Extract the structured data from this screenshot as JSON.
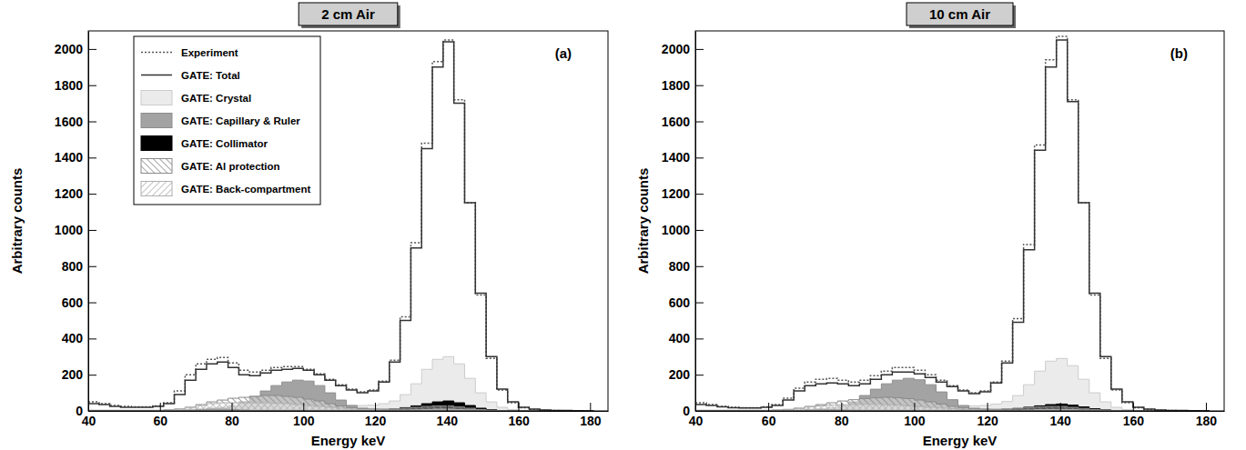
{
  "chart_data": [
    {
      "type": "histogram",
      "title": "2 cm Air",
      "x_label": "Energy keV",
      "y_label": "Arbitrary counts",
      "annotation": "(a)",
      "xlim": [
        40,
        185
      ],
      "ylim": [
        0,
        2100
      ],
      "xticks": [
        40,
        60,
        80,
        100,
        120,
        140,
        160,
        180
      ],
      "yticks": [
        0,
        200,
        400,
        600,
        800,
        1000,
        1200,
        1400,
        1600,
        1800,
        2000
      ],
      "legend": "top-left",
      "bins": [
        40,
        43,
        46,
        49,
        52,
        55,
        58,
        61,
        64,
        67,
        70,
        73,
        76,
        79,
        82,
        85,
        88,
        91,
        94,
        97,
        100,
        103,
        106,
        109,
        112,
        115,
        118,
        121,
        124,
        127,
        130,
        133,
        136,
        139,
        142,
        145,
        148,
        151,
        154,
        157,
        160,
        163,
        166,
        169,
        172,
        175,
        178,
        181
      ],
      "series": [
        {
          "name": "Experiment",
          "type": "step",
          "color": "#555555",
          "line_style": "dotted",
          "values": [
            50,
            40,
            30,
            25,
            22,
            22,
            28,
            45,
            110,
            200,
            260,
            285,
            295,
            265,
            225,
            215,
            225,
            240,
            245,
            245,
            230,
            205,
            175,
            145,
            120,
            105,
            115,
            165,
            280,
            520,
            930,
            1480,
            1930,
            2050,
            1720,
            1150,
            640,
            290,
            115,
            45,
            18,
            8,
            4,
            2,
            1,
            0,
            0
          ]
        },
        {
          "name": "GATE: Total",
          "type": "step",
          "color": "#333333",
          "line_style": "solid",
          "values": [
            40,
            35,
            25,
            20,
            20,
            20,
            25,
            40,
            90,
            170,
            230,
            260,
            270,
            240,
            200,
            195,
            210,
            225,
            230,
            235,
            225,
            200,
            170,
            140,
            115,
            100,
            110,
            160,
            270,
            500,
            900,
            1450,
            1900,
            2040,
            1700,
            1150,
            650,
            300,
            120,
            50,
            20,
            10,
            5,
            3,
            2,
            1,
            0
          ]
        },
        {
          "name": "GATE: Crystal",
          "type": "area",
          "color": "#ebebeb",
          "line_style": "solid",
          "values": [
            5,
            5,
            5,
            5,
            5,
            5,
            5,
            8,
            10,
            12,
            15,
            18,
            20,
            22,
            25,
            28,
            30,
            35,
            38,
            40,
            40,
            38,
            35,
            32,
            30,
            30,
            32,
            40,
            55,
            90,
            150,
            230,
            285,
            300,
            260,
            180,
            100,
            50,
            20,
            8,
            3,
            1,
            0,
            0,
            0,
            0,
            0
          ]
        },
        {
          "name": "GATE: Capillary & Ruler",
          "type": "area",
          "color": "#a3a3a3",
          "line_style": "solid",
          "values": [
            0,
            0,
            0,
            0,
            0,
            0,
            0,
            0,
            2,
            5,
            10,
            15,
            20,
            30,
            50,
            80,
            110,
            140,
            160,
            170,
            165,
            140,
            100,
            60,
            30,
            15,
            10,
            8,
            10,
            15,
            20,
            25,
            30,
            30,
            25,
            18,
            10,
            5,
            2,
            1,
            0,
            0,
            0,
            0,
            0,
            0,
            0
          ]
        },
        {
          "name": "GATE: Collimator",
          "type": "area",
          "color": "#000000",
          "line_style": "solid",
          "values": [
            0,
            0,
            0,
            0,
            0,
            0,
            0,
            0,
            2,
            5,
            8,
            10,
            10,
            8,
            5,
            3,
            3,
            3,
            3,
            3,
            3,
            3,
            3,
            3,
            3,
            3,
            3,
            5,
            10,
            18,
            28,
            40,
            50,
            55,
            45,
            30,
            15,
            6,
            2,
            1,
            0,
            0,
            0,
            0,
            0,
            0,
            0
          ]
        },
        {
          "name": "GATE: Al protection",
          "type": "area",
          "color": "#8a8a8a",
          "line_style": "hatched",
          "values": [
            0,
            0,
            0,
            0,
            0,
            0,
            2,
            5,
            10,
            20,
            35,
            50,
            60,
            70,
            75,
            80,
            85,
            85,
            80,
            75,
            65,
            55,
            40,
            28,
            18,
            12,
            10,
            10,
            12,
            15,
            20,
            25,
            28,
            28,
            22,
            15,
            8,
            4,
            2,
            0,
            0,
            0,
            0,
            0,
            0,
            0,
            0
          ]
        },
        {
          "name": "GATE: Back-compartment",
          "type": "area",
          "color": "#b0b0b0",
          "line_style": "hatched",
          "values": [
            0,
            0,
            0,
            0,
            0,
            0,
            2,
            5,
            10,
            20,
            30,
            40,
            45,
            45,
            45,
            45,
            45,
            42,
            40,
            35,
            30,
            25,
            20,
            15,
            10,
            8,
            6,
            5,
            5,
            5,
            6,
            8,
            10,
            10,
            8,
            6,
            4,
            2,
            1,
            0,
            0,
            0,
            0,
            0,
            0,
            0,
            0
          ]
        }
      ]
    },
    {
      "type": "histogram",
      "title": "10 cm Air",
      "x_label": "Energy keV",
      "y_label": "Arbitrary counts",
      "annotation": "(b)",
      "xlim": [
        40,
        185
      ],
      "ylim": [
        0,
        2100
      ],
      "xticks": [
        40,
        60,
        80,
        100,
        120,
        140,
        160,
        180
      ],
      "yticks": [
        0,
        200,
        400,
        600,
        800,
        1000,
        1200,
        1400,
        1600,
        1800,
        2000
      ],
      "bins": [
        40,
        43,
        46,
        49,
        52,
        55,
        58,
        61,
        64,
        67,
        70,
        73,
        76,
        79,
        82,
        85,
        88,
        91,
        94,
        97,
        100,
        103,
        106,
        109,
        112,
        115,
        118,
        121,
        124,
        127,
        130,
        133,
        136,
        139,
        142,
        145,
        148,
        151,
        154,
        157,
        160,
        163,
        166,
        169,
        172,
        175,
        178,
        181
      ],
      "series": [
        {
          "type": "step",
          "color": "#555555",
          "line_style": "dotted",
          "values": [
            45,
            35,
            25,
            20,
            18,
            18,
            22,
            35,
            70,
            125,
            160,
            175,
            180,
            170,
            160,
            170,
            195,
            220,
            240,
            240,
            225,
            200,
            170,
            140,
            115,
            100,
            110,
            160,
            275,
            510,
            920,
            1470,
            1940,
            2070,
            1720,
            1150,
            640,
            290,
            115,
            45,
            18,
            8,
            4,
            2,
            1,
            0,
            0
          ]
        },
        {
          "type": "step",
          "color": "#333333",
          "line_style": "solid",
          "values": [
            35,
            30,
            22,
            18,
            16,
            16,
            20,
            30,
            60,
            110,
            140,
            150,
            155,
            150,
            140,
            150,
            175,
            200,
            215,
            215,
            205,
            185,
            160,
            135,
            110,
            95,
            105,
            155,
            265,
            490,
            890,
            1440,
            1900,
            2050,
            1710,
            1150,
            650,
            300,
            120,
            50,
            20,
            10,
            5,
            3,
            2,
            1,
            0
          ]
        },
        {
          "type": "area",
          "color": "#ebebeb",
          "line_style": "solid",
          "values": [
            5,
            5,
            5,
            5,
            5,
            5,
            5,
            7,
            9,
            10,
            12,
            14,
            16,
            18,
            22,
            26,
            30,
            34,
            37,
            38,
            38,
            36,
            33,
            30,
            28,
            28,
            30,
            38,
            52,
            85,
            145,
            220,
            275,
            290,
            250,
            175,
            100,
            50,
            20,
            8,
            3,
            1,
            0,
            0,
            0,
            0,
            0
          ]
        },
        {
          "type": "area",
          "color": "#a3a3a3",
          "line_style": "solid",
          "values": [
            0,
            0,
            0,
            0,
            0,
            0,
            0,
            0,
            2,
            4,
            8,
            12,
            18,
            28,
            50,
            85,
            120,
            150,
            170,
            180,
            172,
            145,
            105,
            62,
            30,
            15,
            10,
            8,
            10,
            15,
            20,
            25,
            30,
            30,
            25,
            18,
            10,
            5,
            2,
            1,
            0,
            0,
            0,
            0,
            0,
            0,
            0
          ]
        },
        {
          "type": "area",
          "color": "#000000",
          "line_style": "solid",
          "values": [
            0,
            0,
            0,
            0,
            0,
            0,
            0,
            0,
            1,
            3,
            5,
            6,
            6,
            5,
            4,
            3,
            3,
            3,
            3,
            3,
            3,
            3,
            3,
            3,
            3,
            3,
            3,
            4,
            7,
            12,
            20,
            28,
            35,
            38,
            32,
            22,
            12,
            5,
            2,
            1,
            0,
            0,
            0,
            0,
            0,
            0,
            0
          ]
        },
        {
          "type": "area",
          "color": "#8a8a8a",
          "line_style": "hatched",
          "values": [
            0,
            0,
            0,
            0,
            0,
            0,
            2,
            4,
            8,
            15,
            25,
            35,
            45,
            55,
            62,
            68,
            72,
            75,
            72,
            68,
            60,
            50,
            38,
            26,
            17,
            11,
            9,
            9,
            11,
            14,
            18,
            22,
            25,
            25,
            20,
            14,
            8,
            4,
            2,
            0,
            0,
            0,
            0,
            0,
            0,
            0,
            0
          ]
        },
        {
          "type": "area",
          "color": "#b0b0b0",
          "line_style": "hatched",
          "values": [
            0,
            0,
            0,
            0,
            0,
            0,
            1,
            3,
            7,
            14,
            22,
            28,
            32,
            34,
            35,
            36,
            36,
            34,
            32,
            28,
            24,
            20,
            16,
            12,
            8,
            6,
            5,
            4,
            4,
            4,
            5,
            7,
            8,
            8,
            7,
            5,
            3,
            2,
            1,
            0,
            0,
            0,
            0,
            0,
            0,
            0,
            0
          ]
        }
      ]
    }
  ]
}
